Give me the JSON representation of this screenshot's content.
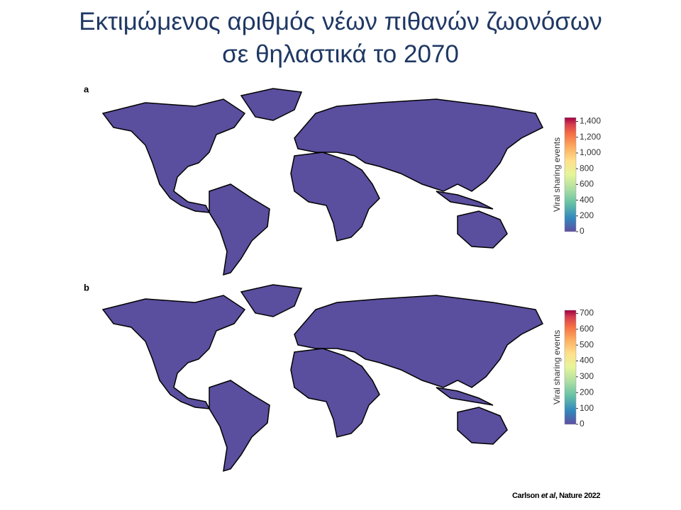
{
  "title": {
    "line1": "Εκτιμώμενος αριθμός νέων πιθανών ζωονόσων",
    "line2": "σε θηλαστικά το 2070"
  },
  "panels": [
    {
      "label": "a",
      "colorbar": {
        "title": "Viral sharing events",
        "lim": [
          0,
          1450
        ],
        "ticks": [
          0,
          200,
          400,
          600,
          800,
          {
            "value": 1000,
            "label": "1,000"
          },
          {
            "value": 1200,
            "label": "1,200"
          },
          {
            "value": 1400,
            "label": "1,400"
          }
        ]
      }
    },
    {
      "label": "b",
      "colorbar": {
        "title": "Viral sharing events",
        "lim": [
          0,
          720
        ],
        "ticks": [
          0,
          100,
          200,
          300,
          400,
          500,
          600,
          700
        ]
      }
    }
  ],
  "citation": {
    "authors": "Carlson",
    "etal": "et al",
    "journal": ", Nature 2022"
  }
}
